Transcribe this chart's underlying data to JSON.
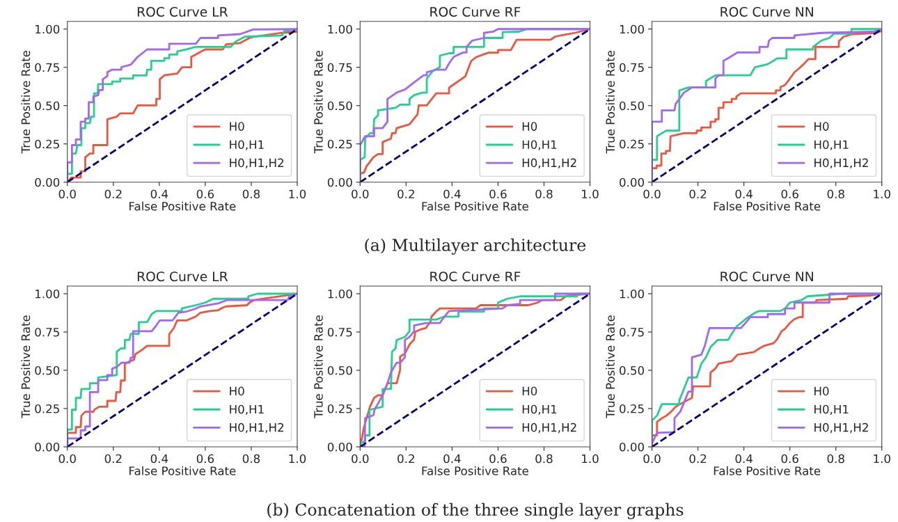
{
  "chart_data": [
    {
      "type": "line",
      "title": "ROC Curve LR",
      "xlabel": "False Positive Rate",
      "ylabel": "True Positive Rate",
      "xlim": [
        0,
        1
      ],
      "ylim": [
        0,
        1.05
      ],
      "xticks": [
        {
          "value": 0,
          "label": "0.0"
        },
        {
          "value": 0.2,
          "label": "0.2"
        },
        {
          "value": 0.4,
          "label": "0.4"
        },
        {
          "value": 0.6,
          "label": "0.6"
        },
        {
          "value": 0.8,
          "label": "0.8"
        },
        {
          "value": 1,
          "label": "1.0"
        }
      ],
      "yticks": [
        {
          "value": 0,
          "label": "0.00"
        },
        {
          "value": 0.25,
          "label": "0.25"
        },
        {
          "value": 0.5,
          "label": "0.50"
        },
        {
          "value": 0.75,
          "label": "0.75"
        },
        {
          "value": 1,
          "label": "1.00"
        }
      ],
      "grid": false,
      "legend": "bottom right",
      "series": [
        {
          "name": "H0",
          "color": "#f0543a",
          "x": [
            0,
            0.017,
            0.058,
            0.058,
            0.078,
            0.078,
            0.098,
            0.113,
            0.113,
            0.174,
            0.174,
            0.215,
            0.23,
            0.286,
            0.306,
            0.387,
            0.387,
            0.402,
            0.402,
            0.422,
            0.478,
            0.499,
            0.539,
            0.539,
            0.559,
            0.579,
            0.6,
            0.676,
            0.691,
            0.752,
            0.792,
            0.813,
            0.929,
            1
          ],
          "values": [
            0,
            0.03,
            0.03,
            0.071,
            0.071,
            0.163,
            0.187,
            0.187,
            0.242,
            0.242,
            0.411,
            0.428,
            0.449,
            0.449,
            0.502,
            0.502,
            0.544,
            0.544,
            0.672,
            0.698,
            0.71,
            0.751,
            0.751,
            0.818,
            0.834,
            0.851,
            0.867,
            0.867,
            0.9,
            0.909,
            0.942,
            0.95,
            0.975,
            0.983
          ]
        },
        {
          "name": "H0,H1",
          "color": "#22d08f",
          "x": [
            0,
            0,
            0.02,
            0.02,
            0.037,
            0.043,
            0.061,
            0.061,
            0.078,
            0.078,
            0.098,
            0.103,
            0.116,
            0.116,
            0.132,
            0.134,
            0.195,
            0.195,
            0.23,
            0.23,
            0.286,
            0.286,
            0.344,
            0.347,
            0.365,
            0.365,
            0.422,
            0.422,
            0.443,
            0.443,
            0.478,
            0.478,
            0.519,
            0.559,
            0.711,
            0.731,
            0.752,
            0.772,
            0.934,
            0.944,
            1
          ],
          "values": [
            0,
            0.055,
            0.055,
            0.187,
            0.187,
            0.242,
            0.242,
            0.353,
            0.353,
            0.386,
            0.386,
            0.428,
            0.428,
            0.58,
            0.58,
            0.64,
            0.64,
            0.657,
            0.657,
            0.677,
            0.677,
            0.697,
            0.697,
            0.735,
            0.735,
            0.793,
            0.793,
            0.81,
            0.81,
            0.834,
            0.834,
            0.854,
            0.868,
            0.884,
            0.884,
            0.917,
            0.934,
            0.95,
            0.959,
            0.987,
            1
          ]
        },
        {
          "name": "H0,H1,H2",
          "color": "#a366f5",
          "x": [
            0,
            0,
            0.02,
            0.02,
            0.037,
            0.037,
            0.058,
            0.058,
            0.078,
            0.078,
            0.093,
            0.093,
            0.113,
            0.113,
            0.134,
            0.139,
            0.154,
            0.154,
            0.174,
            0.174,
            0.195,
            0.235,
            0.235,
            0.276,
            0.306,
            0.326,
            0.347,
            0.443,
            0.443,
            0.559,
            0.579,
            0.656,
            0.656,
            0.752,
            0.808,
            1
          ],
          "values": [
            0,
            0.129,
            0.129,
            0.242,
            0.242,
            0.279,
            0.279,
            0.395,
            0.395,
            0.415,
            0.415,
            0.522,
            0.522,
            0.56,
            0.569,
            0.602,
            0.602,
            0.672,
            0.693,
            0.718,
            0.735,
            0.735,
            0.751,
            0.768,
            0.818,
            0.842,
            0.867,
            0.867,
            0.904,
            0.904,
            0.942,
            0.942,
            0.959,
            0.967,
            0.997,
            1
          ]
        },
        {
          "color": "#000080",
          "line_style": "dashed",
          "x": [
            0,
            1
          ],
          "values": [
            0,
            1
          ]
        }
      ]
    },
    {
      "type": "line",
      "title": "ROC Curve RF",
      "xlabel": "False Positive Rate",
      "ylabel": "True Positive Rate",
      "xlim": [
        0,
        1
      ],
      "ylim": [
        0,
        1.05
      ],
      "xticks": [
        {
          "value": 0,
          "label": "0.0"
        },
        {
          "value": 0.2,
          "label": "0.2"
        },
        {
          "value": 0.4,
          "label": "0.4"
        },
        {
          "value": 0.6,
          "label": "0.6"
        },
        {
          "value": 0.8,
          "label": "0.8"
        },
        {
          "value": 1,
          "label": "1.0"
        }
      ],
      "yticks": [
        {
          "value": 0,
          "label": "0.00"
        },
        {
          "value": 0.25,
          "label": "0.25"
        },
        {
          "value": 0.5,
          "label": "0.50"
        },
        {
          "value": 0.75,
          "label": "0.75"
        },
        {
          "value": 1,
          "label": "1.00"
        }
      ],
      "grid": false,
      "legend": "bottom right",
      "annotations": [
        "(a) Multilayer architecture"
      ],
      "series": [
        {
          "name": "H0",
          "color": "#f0543a",
          "x": [
            0,
            0,
            0.017,
            0.028,
            0.058,
            0.078,
            0.098,
            0.098,
            0.134,
            0.139,
            0.154,
            0.159,
            0.215,
            0.25,
            0.255,
            0.29,
            0.331,
            0.387,
            0.387,
            0.458,
            0.468,
            0.483,
            0.504,
            0.539,
            0.559,
            0.6,
            0.6,
            0.656,
            0.676,
            0.681,
            0.828,
            0.848,
            0.873,
            0.934,
            1
          ],
          "values": [
            0,
            0.055,
            0.063,
            0.104,
            0.163,
            0.184,
            0.184,
            0.262,
            0.284,
            0.32,
            0.32,
            0.353,
            0.378,
            0.444,
            0.502,
            0.502,
            0.58,
            0.58,
            0.617,
            0.691,
            0.733,
            0.791,
            0.816,
            0.836,
            0.846,
            0.846,
            0.863,
            0.863,
            0.917,
            0.93,
            0.93,
            0.95,
            0.959,
            0.975,
            1
          ]
        },
        {
          "name": "H0,H1",
          "color": "#22d08f",
          "x": [
            0,
            0,
            0.02,
            0.022,
            0.043,
            0.058,
            0.061,
            0.078,
            0.078,
            0.154,
            0.174,
            0.215,
            0.215,
            0.235,
            0.27,
            0.29,
            0.29,
            0.316,
            0.347,
            0.347,
            0.387,
            0.407,
            0.407,
            0.539,
            0.539,
            0.62,
            0.62,
            0.691,
            0.726,
            1
          ],
          "values": [
            0,
            0.146,
            0.163,
            0.287,
            0.32,
            0.32,
            0.411,
            0.436,
            0.469,
            0.486,
            0.506,
            0.506,
            0.544,
            0.569,
            0.585,
            0.585,
            0.677,
            0.726,
            0.751,
            0.826,
            0.842,
            0.842,
            0.884,
            0.884,
            0.942,
            0.942,
            0.98,
            0.983,
            1,
            1
          ]
        },
        {
          "name": "H0,H1,H2",
          "color": "#a366f5",
          "x": [
            0,
            0,
            0.022,
            0.061,
            0.061,
            0.098,
            0.119,
            0.119,
            0.159,
            0.195,
            0.235,
            0.276,
            0.29,
            0.29,
            0.331,
            0.372,
            0.387,
            0.407,
            0.422,
            0.448,
            0.463,
            0.463,
            0.488,
            0.539,
            0.539,
            0.579,
            0.6,
            1
          ],
          "values": [
            0,
            0.242,
            0.3,
            0.3,
            0.353,
            0.353,
            0.395,
            0.544,
            0.585,
            0.605,
            0.652,
            0.698,
            0.698,
            0.718,
            0.735,
            0.735,
            0.776,
            0.818,
            0.829,
            0.847,
            0.847,
            0.884,
            0.925,
            0.942,
            0.975,
            0.983,
            1,
            1
          ]
        },
        {
          "color": "#000080",
          "line_style": "dashed",
          "x": [
            0,
            1
          ],
          "values": [
            0,
            1
          ]
        }
      ]
    },
    {
      "type": "line",
      "title": "ROC Curve NN",
      "xlabel": "False Positive Rate",
      "ylabel": "True Positive Rate",
      "xlim": [
        0,
        1
      ],
      "ylim": [
        0,
        1.05
      ],
      "xticks": [
        {
          "value": 0,
          "label": "0.0"
        },
        {
          "value": 0.2,
          "label": "0.2"
        },
        {
          "value": 0.4,
          "label": "0.4"
        },
        {
          "value": 0.6,
          "label": "0.6"
        },
        {
          "value": 0.8,
          "label": "0.8"
        },
        {
          "value": 1,
          "label": "1.0"
        }
      ],
      "yticks": [
        {
          "value": 0,
          "label": "0.00"
        },
        {
          "value": 0.25,
          "label": "0.25"
        },
        {
          "value": 0.5,
          "label": "0.50"
        },
        {
          "value": 0.75,
          "label": "0.75"
        },
        {
          "value": 1,
          "label": "1.00"
        }
      ],
      "grid": false,
      "legend": "bottom right",
      "series": [
        {
          "name": "H0",
          "color": "#f0543a",
          "x": [
            0,
            0,
            0.02,
            0.02,
            0.041,
            0.041,
            0.061,
            0.061,
            0.078,
            0.081,
            0.139,
            0.195,
            0.195,
            0.215,
            0.215,
            0.255,
            0.255,
            0.276,
            0.276,
            0.29,
            0.29,
            0.311,
            0.311,
            0.347,
            0.347,
            0.367,
            0.367,
            0.387,
            0.539,
            0.539,
            0.559,
            0.559,
            0.579,
            0.6,
            0.62,
            0.64,
            0.66,
            0.681,
            0.711,
            0.711,
            0.813,
            0.813,
            0.833,
            0.873,
            0.975,
            1
          ],
          "values": [
            0,
            0.091,
            0.091,
            0.108,
            0.108,
            0.187,
            0.187,
            0.204,
            0.204,
            0.3,
            0.32,
            0.32,
            0.337,
            0.337,
            0.357,
            0.357,
            0.395,
            0.395,
            0.411,
            0.411,
            0.486,
            0.486,
            0.522,
            0.522,
            0.544,
            0.544,
            0.56,
            0.58,
            0.58,
            0.599,
            0.599,
            0.622,
            0.635,
            0.677,
            0.718,
            0.743,
            0.771,
            0.804,
            0.804,
            0.884,
            0.884,
            0.92,
            0.95,
            0.967,
            0.975,
            0.987
          ]
        },
        {
          "name": "H0,H1",
          "color": "#22d08f",
          "x": [
            0,
            0,
            0.022,
            0.022,
            0.043,
            0.063,
            0.119,
            0.119,
            0.159,
            0.235,
            0.235,
            0.276,
            0.428,
            0.448,
            0.504,
            0.529,
            0.544,
            0.585,
            0.585,
            0.701,
            0.701,
            0.737,
            0.772,
            0.792,
            0.868,
            0.868,
            1
          ],
          "values": [
            0,
            0.146,
            0.146,
            0.3,
            0.32,
            0.337,
            0.337,
            0.599,
            0.619,
            0.619,
            0.66,
            0.698,
            0.698,
            0.751,
            0.771,
            0.793,
            0.809,
            0.809,
            0.867,
            0.867,
            0.884,
            0.925,
            0.942,
            0.97,
            0.97,
            1,
            1
          ]
        },
        {
          "name": "H0,H1,H2",
          "color": "#a366f5",
          "x": [
            0,
            0,
            0.043,
            0.043,
            0.098,
            0.103,
            0.119,
            0.139,
            0.174,
            0.276,
            0.276,
            0.29,
            0.311,
            0.311,
            0.331,
            0.372,
            0.468,
            0.468,
            0.504,
            0.509,
            0.524,
            0.62,
            0.62,
            0.737,
            0.965,
            1
          ],
          "values": [
            0,
            0.395,
            0.395,
            0.469,
            0.469,
            0.511,
            0.544,
            0.585,
            0.619,
            0.619,
            0.677,
            0.698,
            0.698,
            0.793,
            0.809,
            0.847,
            0.847,
            0.884,
            0.884,
            0.925,
            0.942,
            0.942,
            0.959,
            0.975,
            0.983,
            1
          ]
        },
        {
          "color": "#000080",
          "line_style": "dashed",
          "x": [
            0,
            1
          ],
          "values": [
            0,
            1
          ]
        }
      ]
    },
    {
      "type": "line",
      "title": "ROC Curve LR",
      "xlabel": "False Positive Rate",
      "ylabel": "True Positive Rate",
      "xlim": [
        0,
        1
      ],
      "ylim": [
        0,
        1.05
      ],
      "xticks": [
        {
          "value": 0,
          "label": "0.0"
        },
        {
          "value": 0.2,
          "label": "0.2"
        },
        {
          "value": 0.4,
          "label": "0.4"
        },
        {
          "value": 0.6,
          "label": "0.6"
        },
        {
          "value": 0.8,
          "label": "0.8"
        },
        {
          "value": 1,
          "label": "1.0"
        }
      ],
      "yticks": [
        {
          "value": 0,
          "label": "0.00"
        },
        {
          "value": 0.25,
          "label": "0.25"
        },
        {
          "value": 0.5,
          "label": "0.50"
        },
        {
          "value": 0.75,
          "label": "0.75"
        },
        {
          "value": 1,
          "label": "1.00"
        }
      ],
      "grid": false,
      "legend": "bottom right",
      "series": [
        {
          "name": "H0",
          "color": "#f0543a",
          "x": [
            0,
            0,
            0.037,
            0.037,
            0.058,
            0.061,
            0.078,
            0.113,
            0.119,
            0.139,
            0.174,
            0.174,
            0.21,
            0.213,
            0.23,
            0.233,
            0.25,
            0.25,
            0.29,
            0.296,
            0.326,
            0.347,
            0.443,
            0.443,
            0.463,
            0.478,
            0.519,
            0.559,
            0.579,
            0.62,
            0.656,
            0.676,
            0.691,
            0.782,
            0.792,
            0.813,
            0.848,
            1
          ],
          "values": [
            0,
            0.091,
            0.091,
            0.129,
            0.129,
            0.204,
            0.229,
            0.229,
            0.245,
            0.262,
            0.262,
            0.3,
            0.3,
            0.357,
            0.357,
            0.433,
            0.433,
            0.544,
            0.569,
            0.605,
            0.635,
            0.66,
            0.66,
            0.735,
            0.776,
            0.826,
            0.826,
            0.851,
            0.876,
            0.887,
            0.892,
            0.909,
            0.917,
            0.925,
            0.942,
            0.959,
            0.967,
            1
          ]
        },
        {
          "name": "H0,H1",
          "color": "#22d08f",
          "x": [
            0,
            0,
            0.02,
            0.02,
            0.037,
            0.037,
            0.058,
            0.061,
            0.098,
            0.098,
            0.134,
            0.134,
            0.215,
            0.215,
            0.233,
            0.25,
            0.25,
            0.27,
            0.276,
            0.311,
            0.311,
            0.347,
            0.367,
            0.387,
            0.498,
            0.498,
            0.559,
            0.6,
            0.635,
            0.787,
            0.787,
            0.828,
            1
          ],
          "values": [
            0,
            0.113,
            0.113,
            0.242,
            0.242,
            0.32,
            0.32,
            0.378,
            0.378,
            0.415,
            0.415,
            0.453,
            0.469,
            0.622,
            0.643,
            0.643,
            0.698,
            0.698,
            0.738,
            0.738,
            0.814,
            0.814,
            0.867,
            0.887,
            0.887,
            0.904,
            0.925,
            0.942,
            0.967,
            0.967,
            0.983,
            1,
            1
          ]
        },
        {
          "name": "H0,H1,H2",
          "color": "#a366f5",
          "x": [
            0,
            0,
            0.058,
            0.058,
            0.078,
            0.078,
            0.098,
            0.098,
            0.134,
            0.134,
            0.174,
            0.174,
            0.195,
            0.195,
            0.215,
            0.235,
            0.27,
            0.276,
            0.286,
            0.286,
            0.367,
            0.387,
            0.402,
            0.458,
            0.483,
            0.519,
            0.554,
            0.579,
            0.656,
            0.696,
            0.959,
            0.965,
            1
          ],
          "values": [
            0,
            0.055,
            0.055,
            0.108,
            0.108,
            0.133,
            0.133,
            0.357,
            0.357,
            0.436,
            0.436,
            0.469,
            0.469,
            0.511,
            0.522,
            0.549,
            0.549,
            0.582,
            0.582,
            0.755,
            0.755,
            0.793,
            0.826,
            0.826,
            0.876,
            0.884,
            0.9,
            0.917,
            0.937,
            0.959,
            0.959,
            0.983,
            1
          ]
        },
        {
          "color": "#000080",
          "line_style": "dashed",
          "x": [
            0,
            1
          ],
          "values": [
            0,
            1
          ]
        }
      ]
    },
    {
      "type": "line",
      "title": "ROC Curve RF",
      "xlabel": "False Positive Rate",
      "ylabel": "True Positive Rate",
      "xlim": [
        0,
        1
      ],
      "ylim": [
        0,
        1.05
      ],
      "xticks": [
        {
          "value": 0,
          "label": "0.0"
        },
        {
          "value": 0.2,
          "label": "0.2"
        },
        {
          "value": 0.4,
          "label": "0.4"
        },
        {
          "value": 0.6,
          "label": "0.6"
        },
        {
          "value": 0.8,
          "label": "0.8"
        },
        {
          "value": 1,
          "label": "1.0"
        }
      ],
      "yticks": [
        {
          "value": 0,
          "label": "0.00"
        },
        {
          "value": 0.25,
          "label": "0.25"
        },
        {
          "value": 0.5,
          "label": "0.50"
        },
        {
          "value": 0.75,
          "label": "0.75"
        },
        {
          "value": 1,
          "label": "1.00"
        }
      ],
      "grid": false,
      "legend": "bottom right",
      "annotations": [
        "(b) Concatenation of the three single layer graphs"
      ],
      "series": [
        {
          "name": "H0",
          "color": "#f0543a",
          "x": [
            0,
            0.017,
            0.043,
            0.061,
            0.078,
            0.098,
            0.119,
            0.159,
            0.174,
            0.174,
            0.195,
            0.215,
            0.235,
            0.24,
            0.265,
            0.286,
            0.306,
            0.311,
            0.331,
            0.347,
            0.504,
            0.524,
            0.731,
            0.772,
            0.792,
            0.873,
            0.899,
            1
          ],
          "values": [
            0,
            0.129,
            0.262,
            0.32,
            0.337,
            0.337,
            0.415,
            0.415,
            0.502,
            0.589,
            0.61,
            0.668,
            0.702,
            0.751,
            0.768,
            0.776,
            0.818,
            0.851,
            0.884,
            0.904,
            0.904,
            0.925,
            0.925,
            0.942,
            0.959,
            0.959,
            0.987,
            1
          ]
        },
        {
          "name": "H0,H1",
          "color": "#22d08f",
          "x": [
            0,
            0,
            0.022,
            0.022,
            0.041,
            0.041,
            0.098,
            0.098,
            0.134,
            0.139,
            0.154,
            0.159,
            0.195,
            0.215,
            0.215,
            0.331,
            0.367,
            0.428,
            0.428,
            0.539,
            0.539,
            0.6,
            0.6,
            0.64,
            0.696,
            0.944,
            0.944,
            1
          ],
          "values": [
            0,
            0.022,
            0.038,
            0.075,
            0.075,
            0.242,
            0.262,
            0.378,
            0.378,
            0.622,
            0.643,
            0.698,
            0.718,
            0.755,
            0.831,
            0.831,
            0.851,
            0.851,
            0.884,
            0.884,
            0.904,
            0.904,
            0.942,
            0.967,
            0.983,
            0.983,
            1,
            1
          ]
        },
        {
          "name": "H0,H1,H2",
          "color": "#a366f5",
          "x": [
            0,
            0.02,
            0.022,
            0.058,
            0.063,
            0.098,
            0.119,
            0.134,
            0.159,
            0.174,
            0.195,
            0.195,
            0.215,
            0.235,
            0.235,
            0.286,
            0.347,
            0.367,
            0.387,
            0.62,
            0.64,
            0.696,
            0.696,
            0.848,
            0.848,
            1
          ],
          "values": [
            0,
            0,
            0.187,
            0.207,
            0.242,
            0.337,
            0.415,
            0.486,
            0.549,
            0.549,
            0.585,
            0.698,
            0.718,
            0.755,
            0.793,
            0.809,
            0.809,
            0.851,
            0.887,
            0.904,
            0.925,
            0.934,
            0.959,
            0.959,
            1,
            1
          ]
        },
        {
          "color": "#000080",
          "line_style": "dashed",
          "x": [
            0,
            1
          ],
          "values": [
            0,
            1
          ]
        }
      ]
    },
    {
      "type": "line",
      "title": "ROC Curve NN",
      "xlabel": "False Positive Rate",
      "ylabel": "True Positive Rate",
      "xlim": [
        0,
        1
      ],
      "ylim": [
        0,
        1.05
      ],
      "xticks": [
        {
          "value": 0,
          "label": "0.0"
        },
        {
          "value": 0.2,
          "label": "0.2"
        },
        {
          "value": 0.4,
          "label": "0.4"
        },
        {
          "value": 0.6,
          "label": "0.6"
        },
        {
          "value": 0.8,
          "label": "0.8"
        },
        {
          "value": 1,
          "label": "1.0"
        }
      ],
      "yticks": [
        {
          "value": 0,
          "label": "0.00"
        },
        {
          "value": 0.25,
          "label": "0.25"
        },
        {
          "value": 0.5,
          "label": "0.50"
        },
        {
          "value": 0.75,
          "label": "0.75"
        },
        {
          "value": 1,
          "label": "1.00"
        }
      ],
      "grid": false,
      "legend": "bottom right",
      "series": [
        {
          "name": "H0",
          "color": "#f0543a",
          "x": [
            0,
            0,
            0.022,
            0.022,
            0.043,
            0.063,
            0.083,
            0.103,
            0.123,
            0.174,
            0.179,
            0.253,
            0.255,
            0.276,
            0.29,
            0.347,
            0.372,
            0.443,
            0.468,
            0.488,
            0.529,
            0.544,
            0.564,
            0.579,
            0.6,
            0.62,
            0.64,
            0.656,
            0.656,
            0.711,
            0.716,
            0.848,
            0.853,
            0.944,
            1
          ],
          "values": [
            0,
            0.075,
            0.075,
            0.163,
            0.187,
            0.204,
            0.229,
            0.262,
            0.279,
            0.32,
            0.395,
            0.395,
            0.486,
            0.511,
            0.544,
            0.56,
            0.602,
            0.619,
            0.643,
            0.66,
            0.677,
            0.702,
            0.755,
            0.771,
            0.809,
            0.834,
            0.847,
            0.847,
            0.942,
            0.942,
            0.959,
            0.967,
            0.983,
            0.987,
            1
          ]
        },
        {
          "name": "H0,H1",
          "color": "#22d08f",
          "x": [
            0,
            0,
            0.022,
            0.043,
            0.119,
            0.119,
            0.139,
            0.159,
            0.195,
            0.215,
            0.235,
            0.255,
            0.286,
            0.331,
            0.347,
            0.367,
            0.407,
            0.448,
            0.468,
            0.559,
            0.579,
            0.6,
            0.651,
            0.676,
            0.828,
            1
          ],
          "values": [
            0,
            0.171,
            0.204,
            0.279,
            0.279,
            0.304,
            0.378,
            0.453,
            0.453,
            0.544,
            0.585,
            0.652,
            0.698,
            0.698,
            0.738,
            0.784,
            0.834,
            0.876,
            0.887,
            0.887,
            0.904,
            0.942,
            0.959,
            0.983,
            1,
            1
          ]
        },
        {
          "name": "H0,H1,H2",
          "color": "#a366f5",
          "x": [
            0,
            0,
            0.022,
            0.098,
            0.098,
            0.123,
            0.139,
            0.159,
            0.174,
            0.174,
            0.215,
            0.23,
            0.25,
            0.387,
            0.407,
            0.428,
            0.504,
            0.504,
            0.579,
            0.579,
            0.62,
            0.62,
            0.772,
            0.772,
            1
          ],
          "values": [
            0,
            0.022,
            0.091,
            0.096,
            0.187,
            0.229,
            0.287,
            0.361,
            0.361,
            0.585,
            0.602,
            0.66,
            0.776,
            0.776,
            0.809,
            0.847,
            0.847,
            0.867,
            0.867,
            0.904,
            0.904,
            0.942,
            0.942,
            1,
            1
          ]
        },
        {
          "color": "#000080",
          "line_style": "dashed",
          "x": [
            0,
            1
          ],
          "values": [
            0,
            1
          ]
        }
      ]
    }
  ]
}
